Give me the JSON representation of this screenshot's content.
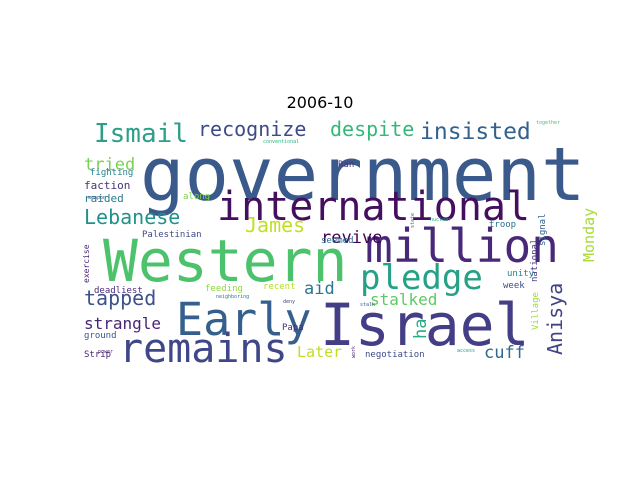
{
  "title": "2006-10",
  "words": [
    {
      "text": "government",
      "color": "#3b5a8c",
      "rotate": false
    },
    {
      "text": "Western",
      "color": "#4cc26c",
      "rotate": false
    },
    {
      "text": "Israel",
      "color": "#433e85",
      "rotate": false
    },
    {
      "text": "million",
      "color": "#482878",
      "rotate": false
    },
    {
      "text": "international",
      "color": "#440f5e",
      "rotate": false
    },
    {
      "text": "Early",
      "color": "#355f8d",
      "rotate": false
    },
    {
      "text": "remains",
      "color": "#3f4788",
      "rotate": false
    },
    {
      "text": "pledge",
      "color": "#25a187",
      "rotate": false
    },
    {
      "text": "Ismail",
      "color": "#2c9f8a",
      "rotate": false
    },
    {
      "text": "insisted",
      "color": "#33628d",
      "rotate": false
    },
    {
      "text": "despite",
      "color": "#35b779",
      "rotate": false
    },
    {
      "text": "recognize",
      "color": "#3e4a89",
      "rotate": false
    },
    {
      "text": "Lebanese",
      "color": "#21918c",
      "rotate": false
    },
    {
      "text": "James",
      "color": "#c2df23",
      "rotate": false
    },
    {
      "text": "tapped",
      "color": "#3b528b",
      "rotate": false
    },
    {
      "text": "Anisya",
      "color": "#414487",
      "rotate": true
    },
    {
      "text": "revive",
      "color": "#440154",
      "rotate": false
    },
    {
      "text": "tried",
      "color": "#7ad151",
      "rotate": false
    },
    {
      "text": "aid",
      "color": "#2a788e",
      "rotate": false
    },
    {
      "text": "stalked",
      "color": "#5ec962",
      "rotate": false
    },
    {
      "text": "strangle",
      "color": "#482475",
      "rotate": false
    },
    {
      "text": "cuff",
      "color": "#31688e",
      "rotate": false
    },
    {
      "text": "ha",
      "color": "#25ac82",
      "rotate": true
    },
    {
      "text": "Later",
      "color": "#bddf26",
      "rotate": false
    },
    {
      "text": "Monday",
      "color": "#a8db34",
      "rotate": true
    },
    {
      "text": "faction",
      "color": "#46337e",
      "rotate": false
    },
    {
      "text": "raided",
      "color": "#287c8e",
      "rotate": false
    },
    {
      "text": "fighting",
      "color": "#26828e",
      "rotate": false
    },
    {
      "text": "along",
      "color": "#7ad151",
      "rotate": false
    },
    {
      "text": "Palestinian",
      "color": "#3e4989",
      "rotate": false
    },
    {
      "text": "seemed",
      "color": "#31688e",
      "rotate": false
    },
    {
      "text": "troop",
      "color": "#2c718e",
      "rotate": false
    },
    {
      "text": "national",
      "color": "#453781",
      "rotate": true
    },
    {
      "text": "signal",
      "color": "#33638d",
      "rotate": true
    },
    {
      "text": "unity",
      "color": "#26828e",
      "rotate": false
    },
    {
      "text": "week",
      "color": "#3e4c8a",
      "rotate": false
    },
    {
      "text": "Village",
      "color": "#a0da39",
      "rotate": true
    },
    {
      "text": "deadliest",
      "color": "#472c7a",
      "rotate": false
    },
    {
      "text": "exercise",
      "color": "#482173",
      "rotate": true
    },
    {
      "text": "feeding",
      "color": "#95d840",
      "rotate": false
    },
    {
      "text": "recent",
      "color": "#b5de2b",
      "rotate": false
    },
    {
      "text": "ground",
      "color": "#39568c",
      "rotate": false
    },
    {
      "text": "Papa",
      "color": "#472d7b",
      "rotate": false
    },
    {
      "text": "negotiation",
      "color": "#3e4a89",
      "rotate": false
    },
    {
      "text": "Strip",
      "color": "#482071",
      "rotate": false
    },
    {
      "text": "Ran",
      "color": "#46337e",
      "rotate": false
    },
    {
      "text": "neighboring",
      "color": "#2a788e",
      "rotate": false
    },
    {
      "text": "conventional",
      "color": "#2db27d",
      "rotate": false
    },
    {
      "text": "together",
      "color": "#4ac16d",
      "rotate": false
    },
    {
      "text": "weapon",
      "color": "#3b528b",
      "rotate": false
    },
    {
      "text": "nuclear",
      "color": "#22a884",
      "rotate": false
    },
    {
      "text": "deny",
      "color": "#3f4889",
      "rotate": false
    },
    {
      "text": "stalk",
      "color": "#39558c",
      "rotate": false
    },
    {
      "text": "work",
      "color": "#481a6c",
      "rotate": true
    },
    {
      "text": "state",
      "color": "#2e6f8e",
      "rotate": true
    },
    {
      "text": "access",
      "color": "#1fa088",
      "rotate": false
    },
    {
      "text": "power",
      "color": "#482475",
      "rotate": false
    }
  ]
}
